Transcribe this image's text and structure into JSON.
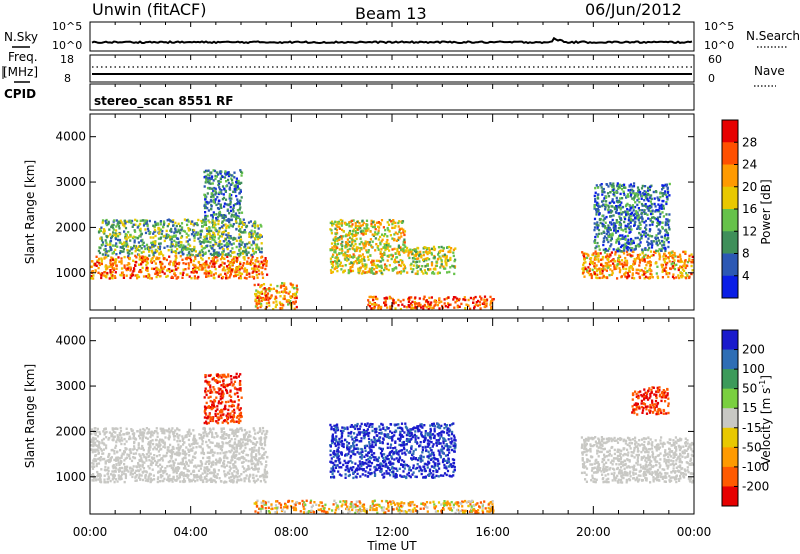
{
  "header": {
    "station": "Unwin (fitACF)",
    "beam": "Beam 13",
    "date": "06/Jun/2012"
  },
  "strips": {
    "nsky": {
      "left_label": "N.Sky",
      "right_label": "N.Search",
      "ticks_left": [
        "10^5",
        "10^0"
      ],
      "ticks_right": [
        "10^5",
        "10^0"
      ]
    },
    "freq": {
      "left_label_1": "Freq.",
      "left_label_2": "[MHz]",
      "ticks_left": [
        "18",
        "8"
      ],
      "right_label": "Nave",
      "ticks_right": [
        "60",
        "0"
      ]
    },
    "cpid": {
      "left_label": "CPID",
      "value": "stereo_scan 8551 RF"
    }
  },
  "chart_data": [
    {
      "type": "heatmap",
      "panel": "power",
      "ylabel": "Slant Range [km]",
      "ylim": [
        180,
        4500
      ],
      "yticks": [
        "1000",
        "2000",
        "3000",
        "4000"
      ],
      "xlim_hours": [
        0,
        24
      ],
      "colorbar_label": "Power [dB]",
      "colorbar_ticks": [
        "4",
        "8",
        "12",
        "16",
        "20",
        "24",
        "28"
      ],
      "colorbar_colors": [
        "#0a1ee6",
        "#2c58b4",
        "#3f8f5a",
        "#66c24a",
        "#e8c800",
        "#ff9a00",
        "#ff5000",
        "#e60000"
      ],
      "echo_regions": [
        {
          "t": [
            0.0,
            7.0
          ],
          "range": [
            900,
            1400
          ],
          "level": 24
        },
        {
          "t": [
            0.3,
            6.8
          ],
          "range": [
            1400,
            2200
          ],
          "level": 12
        },
        {
          "t": [
            4.5,
            6.0
          ],
          "range": [
            2200,
            3300
          ],
          "level": 8
        },
        {
          "t": [
            6.5,
            8.2
          ],
          "range": [
            200,
            800
          ],
          "level": 22
        },
        {
          "t": [
            9.5,
            12.5
          ],
          "range": [
            1000,
            2200
          ],
          "level": 18
        },
        {
          "t": [
            12.5,
            14.5
          ],
          "range": [
            1000,
            1600
          ],
          "level": 16
        },
        {
          "t": [
            11.0,
            16.0
          ],
          "range": [
            200,
            500
          ],
          "level": 26
        },
        {
          "t": [
            19.5,
            24.0
          ],
          "range": [
            900,
            1500
          ],
          "level": 22
        },
        {
          "t": [
            20.0,
            23.0
          ],
          "range": [
            1500,
            3000
          ],
          "level": 8
        }
      ]
    },
    {
      "type": "heatmap",
      "panel": "velocity",
      "ylabel": "Slant Range [km]",
      "ylim": [
        180,
        4500
      ],
      "yticks": [
        "1000",
        "2000",
        "3000",
        "4000"
      ],
      "xlabel": "Time UT",
      "xticks": [
        "00:00",
        "04:00",
        "08:00",
        "12:00",
        "16:00",
        "20:00",
        "00:00"
      ],
      "xlim_hours": [
        0,
        24
      ],
      "colorbar_label": "Velocity [m s",
      "colorbar_label_sup": "-1",
      "colorbar_label_end": "]",
      "colorbar_ticks": [
        "200",
        "100",
        "50",
        "15",
        "-15",
        "-50",
        "-100",
        "-200"
      ],
      "colorbar_colors": [
        "#1a1acc",
        "#2f6eb5",
        "#3c9a5a",
        "#7ad040",
        "#c8c8c4",
        "#e8c800",
        "#ff9a00",
        "#ff5a00",
        "#e60000"
      ],
      "echo_regions": [
        {
          "t": [
            0.0,
            7.0
          ],
          "range": [
            900,
            2100
          ],
          "value": 0
        },
        {
          "t": [
            4.5,
            6.0
          ],
          "range": [
            2200,
            3300
          ],
          "value": -150
        },
        {
          "t": [
            9.5,
            14.5
          ],
          "range": [
            1000,
            2200
          ],
          "value": 180
        },
        {
          "t": [
            19.5,
            24.0
          ],
          "range": [
            900,
            1900
          ],
          "value": 0
        },
        {
          "t": [
            21.5,
            23.0
          ],
          "range": [
            2400,
            3000
          ],
          "value": -150
        },
        {
          "t": [
            6.5,
            16.0
          ],
          "range": [
            200,
            500
          ],
          "value": -40
        }
      ]
    }
  ]
}
